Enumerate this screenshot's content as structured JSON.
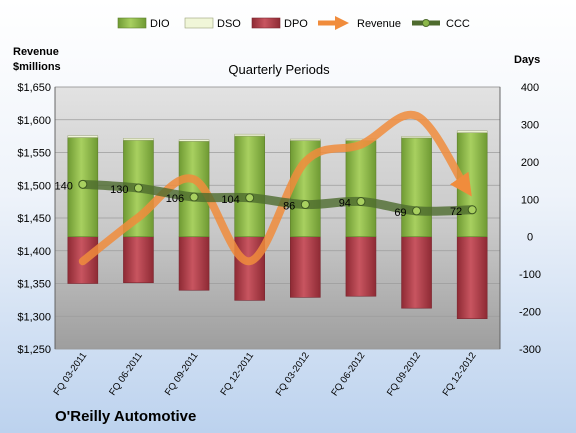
{
  "chart_data": {
    "type": "bar",
    "title": "Quarterly Periods",
    "company": "O'Reilly Automotive",
    "left_axis_label": [
      "Revenue",
      "$millions"
    ],
    "right_axis_label": "Days",
    "categories": [
      "FQ 03-2011",
      "FQ 06-2011",
      "FQ 09-2011",
      "FQ 12-2011",
      "FQ 03-2012",
      "FQ 06-2012",
      "FQ 09-2012",
      "FQ 12-2012"
    ],
    "left_axis": {
      "min": 1250,
      "max": 1650,
      "step": 50,
      "tick_labels": [
        "$1,250",
        "$1,300",
        "$1,350",
        "$1,400",
        "$1,450",
        "$1,500",
        "$1,550",
        "$1,600",
        "$1,650"
      ]
    },
    "right_axis": {
      "min": -300,
      "max": 400,
      "step": 100,
      "tick_labels": [
        "-300",
        "-200",
        "-100",
        "0",
        "100",
        "200",
        "300",
        "400"
      ]
    },
    "grid": true,
    "legend_position": "top",
    "legend": [
      "DIO",
      "DSO",
      "DPO",
      "Revenue",
      "CCC"
    ],
    "series": [
      {
        "name": "DIO",
        "axis": "right",
        "kind": "stacked-bar",
        "color": "#8cb84a",
        "values": [
          265,
          258,
          255,
          269,
          257,
          257,
          264,
          278
        ]
      },
      {
        "name": "DSO",
        "axis": "right",
        "kind": "stacked-bar",
        "color": "#f0f6d8",
        "values": [
          5,
          5,
          4,
          5,
          4,
          4,
          4,
          5
        ]
      },
      {
        "name": "DPO",
        "axis": "right",
        "kind": "bar-negative",
        "color": "#b4404a",
        "values": [
          -125,
          -123,
          -143,
          -170,
          -162,
          -159,
          -191,
          -219
        ]
      },
      {
        "name": "Revenue",
        "axis": "left",
        "kind": "line",
        "color": "#f08c3c",
        "values": [
          1384,
          1451,
          1509,
          1384,
          1536,
          1562,
          1606,
          1482
        ]
      },
      {
        "name": "CCC",
        "axis": "right",
        "kind": "line",
        "color": "#4e6b2e",
        "values": [
          140,
          130,
          106,
          104,
          86,
          94,
          69,
          72
        ],
        "labels": [
          "140",
          "130",
          "106",
          "104",
          "86",
          "94",
          "69",
          "72"
        ]
      }
    ]
  }
}
